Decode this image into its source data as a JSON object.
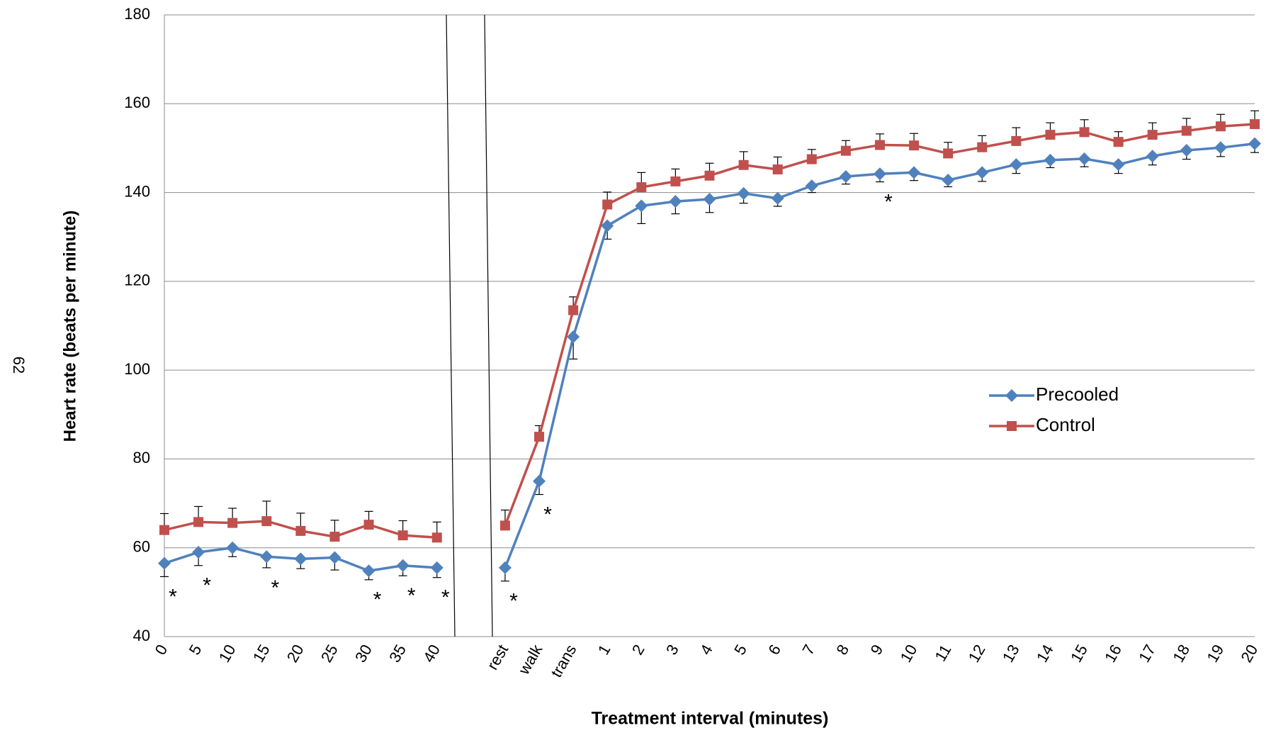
{
  "chart_data": {
    "type": "line",
    "page_number": "62",
    "y_label": "Heart rate (beats per minute)",
    "x_label": "Treatment interval (minutes)",
    "categories": [
      "0",
      "5",
      "10",
      "15",
      "20",
      "25",
      "30",
      "35",
      "40",
      null,
      "rest",
      "walk",
      "trans",
      "1",
      "2",
      "3",
      "4",
      "5",
      "6",
      "7",
      "8",
      "9",
      "10",
      "11",
      "12",
      "13",
      "14",
      "15",
      "16",
      "17",
      "18",
      "19",
      "20"
    ],
    "series": [
      {
        "name": "Precooled",
        "color": "#4f81bd",
        "marker": "diamond",
        "error_direction": "down",
        "values": [
          56.5,
          59,
          60,
          58,
          57.5,
          57.8,
          54.8,
          56,
          55.5,
          null,
          55.5,
          75,
          107.5,
          132.5,
          137,
          138,
          138.5,
          139.8,
          138.7,
          141.5,
          143.6,
          144.2,
          144.5,
          142.8,
          144.5,
          146.3,
          147.3,
          147.6,
          146.3,
          148.2,
          149.5,
          150.1,
          151
        ],
        "errors": [
          3,
          3,
          2,
          2.5,
          2.2,
          2.8,
          2,
          2.3,
          2.2,
          null,
          3,
          3,
          5,
          3,
          4,
          2.8,
          3,
          2.2,
          1.8,
          1.5,
          1.7,
          1.8,
          1.8,
          1.5,
          2,
          2,
          1.7,
          1.8,
          2,
          2,
          2,
          2,
          2
        ]
      },
      {
        "name": "Control",
        "color": "#c0504d",
        "marker": "square",
        "error_direction": "up",
        "values": [
          64,
          65.8,
          65.6,
          66,
          63.8,
          62.5,
          65.2,
          62.8,
          62.3,
          null,
          65,
          85,
          113.5,
          137.3,
          141.2,
          142.5,
          143.8,
          146.2,
          145.2,
          147.5,
          149.4,
          150.7,
          150.6,
          148.8,
          150.2,
          151.6,
          153,
          153.6,
          151.4,
          153,
          153.9,
          154.9,
          155.4
        ],
        "errors": [
          3.7,
          3.5,
          3.3,
          4.5,
          4,
          3.7,
          3,
          3.3,
          3.5,
          null,
          3.5,
          2.5,
          3,
          2.8,
          3.3,
          2.8,
          2.8,
          3,
          2.8,
          2.2,
          2.3,
          2.5,
          2.7,
          2.5,
          2.6,
          3,
          2.7,
          2.8,
          2.3,
          2.7,
          2.8,
          2.7,
          3
        ]
      }
    ],
    "significance": [
      "*",
      "*",
      null,
      "*",
      null,
      null,
      "*",
      "*",
      "*",
      null,
      "*",
      "*",
      null,
      null,
      null,
      null,
      null,
      null,
      null,
      null,
      null,
      "*",
      null,
      null,
      null,
      null,
      null,
      null,
      null,
      null,
      null,
      null,
      null
    ],
    "ylim": [
      40,
      180
    ],
    "yticks": [
      40,
      60,
      80,
      100,
      120,
      140,
      160,
      180
    ],
    "grid": true,
    "legend": "right"
  }
}
